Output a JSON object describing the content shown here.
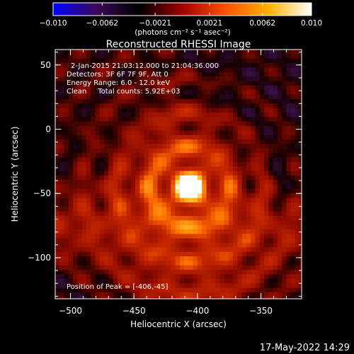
{
  "chart_data": {
    "type": "heatmap",
    "title": "Reconstructed RHESSI Image",
    "xlabel": "Heliocentric X (arcsec)",
    "ylabel": "Heliocentric Y (arcsec)",
    "xlim": [
      -512,
      -318
    ],
    "ylim": [
      -132,
      62
    ],
    "x_ticks": [
      -500,
      -450,
      -400,
      -350
    ],
    "y_ticks": [
      50,
      0,
      -50,
      -100
    ],
    "x_tick_labels": [
      "−500",
      "−450",
      "−400",
      "−350"
    ],
    "y_tick_labels": [
      "50",
      "0",
      "−50",
      "−100"
    ],
    "colorbar": {
      "range": [
        -0.01,
        0.01
      ],
      "ticks": [
        -0.01,
        -0.0062,
        -0.0021,
        0.0021,
        0.0062,
        0.01
      ],
      "tick_labels": [
        "−0.010",
        "−0.0062",
        "−0.0021",
        "0.0021",
        "0.0062",
        "0.010"
      ],
      "unit_label": "(photons cm⁻² s⁻¹ asec⁻²)",
      "colors": [
        "#0000ff",
        "#3a0a5a",
        "#000000",
        "#a00000",
        "#ff5000",
        "#ffb000",
        "#ffffff"
      ]
    },
    "peak": {
      "x": -406,
      "y": -45
    },
    "annotations": [
      "2-Jan-2015 21:03:12.000 to 21:04:36.000",
      "Detectors: 3F 6F 7F 9F, Att 0",
      "Energy Range: 6.0 - 12.0 keV",
      "Clean     Total counts: 5.92E+03"
    ],
    "peak_label": "Position of Peak = [-406,-45]"
  },
  "footer": {
    "timestamp": "17-May-2022 14:29"
  }
}
